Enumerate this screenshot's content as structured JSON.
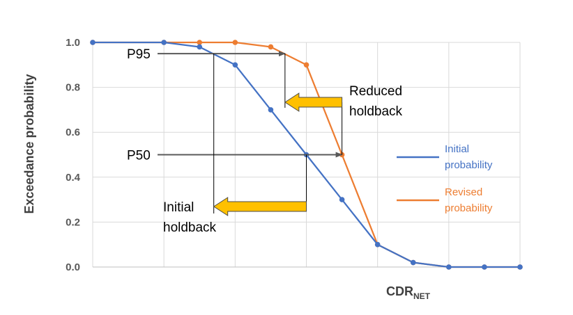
{
  "chart_data": {
    "type": "line",
    "title": "",
    "xlabel": "CDR",
    "xlabel_subscript": "NET",
    "ylabel": "Exceedance probability",
    "ylim": [
      0,
      1
    ],
    "yticks": [
      "0.0",
      "0.2",
      "0.4",
      "0.6",
      "0.8",
      "1.0"
    ],
    "x_ticks_labeled": false,
    "grid": true,
    "legend_position": "right",
    "series": [
      {
        "name": "Initial probability",
        "color": "#4472C4",
        "x": [
          0,
          1,
          1.5,
          2,
          2.5,
          3,
          3.5,
          4,
          4.5,
          5,
          5.5,
          6
        ],
        "values": [
          1.0,
          1.0,
          0.98,
          0.9,
          0.7,
          0.5,
          0.3,
          0.1,
          0.02,
          0.0,
          0.0,
          0.0
        ]
      },
      {
        "name": "Revised probability",
        "color": "#ED7D31",
        "x": [
          0,
          1,
          1.5,
          2,
          2.5,
          3,
          3.5,
          4,
          4.5,
          5,
          5.5,
          6
        ],
        "values": [
          1.0,
          1.0,
          1.0,
          1.0,
          0.98,
          0.9,
          0.5,
          0.1,
          0.02,
          0.0,
          0.0,
          0.0
        ]
      }
    ],
    "legend": [
      {
        "label_line1": "Initial",
        "label_line2": "probability",
        "color": "#4472C4"
      },
      {
        "label_line1": "Revised",
        "label_line2": "probability",
        "color": "#ED7D31"
      }
    ],
    "annotations": {
      "p95_label": "P95",
      "p50_label": "P50",
      "reduced_line1": "Reduced",
      "reduced_line2": "holdback",
      "initial_line1": "Initial",
      "initial_line2": "holdback",
      "p95_level": 0.95,
      "p50_level": 0.5,
      "p95_initial_x": 1.7,
      "p95_revised_x": 2.7,
      "p50_initial_x": 3.0,
      "p50_revised_x": 3.5,
      "arrow_color": "#FFC000"
    }
  }
}
